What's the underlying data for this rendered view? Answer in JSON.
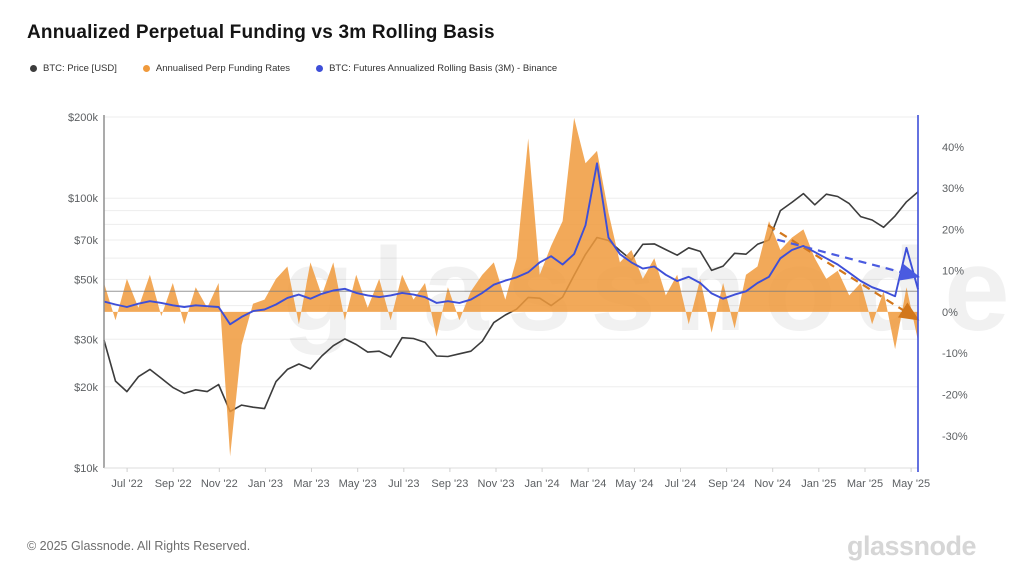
{
  "header": {
    "title": "Annualized Perpetual Funding vs 3m Rolling Basis"
  },
  "legend": {
    "items": [
      {
        "label": "BTC: Price [USD]",
        "color": "#3c3c3c"
      },
      {
        "label": "Annualised Perp Funding Rates",
        "color": "#f09a3c"
      },
      {
        "label": "BTC: Futures Annualized Rolling Basis (3M) - Binance",
        "color": "#3e4fd8"
      }
    ]
  },
  "watermark": {
    "text": "glassnode"
  },
  "footer": {
    "copyright": "© 2025 Glassnode. All Rights Reserved.",
    "brand": "glassnode"
  },
  "chart_data": {
    "type": "mixed",
    "title": "Annualized Perpetual Funding vs 3m Rolling Basis",
    "x_axis": {
      "description": "Time, late May 2022 to mid May 2025; series sampled uniformly (~half-month steps), month 0 = Jun 2022",
      "domain_months": 35.3,
      "tick_month_offsets": [
        1,
        3,
        5,
        7,
        9,
        11,
        13,
        15,
        17,
        19,
        21,
        23,
        25,
        27,
        29,
        31,
        33,
        35
      ],
      "tick_labels": [
        "Jul '22",
        "Sep '22",
        "Nov '22",
        "Jan '23",
        "Mar '23",
        "May '23",
        "Jul '23",
        "Sep '23",
        "Nov '23",
        "Jan '24",
        "Mar '24",
        "May '24",
        "Jul '24",
        "Sep '24",
        "Nov '24",
        "Jan '25",
        "Mar '25",
        "May '25"
      ]
    },
    "left_axis": {
      "label": "BTC price, USD (log scale)",
      "scale": "log",
      "range_k": [
        10,
        200
      ],
      "tick_values_k": [
        200,
        100,
        70,
        50,
        30,
        20,
        10
      ],
      "tick_labels": [
        "$200k",
        "$100k",
        "$70k",
        "$50k",
        "$30k",
        "$20k",
        "$10k"
      ],
      "gridline_values_k": [
        200,
        100,
        90,
        80,
        70,
        60,
        50,
        40,
        30,
        20
      ]
    },
    "right_axis": {
      "label": "Annualized rate, %",
      "scale": "linear",
      "range": [
        -37.8,
        47.7
      ],
      "tick_values": [
        40,
        30,
        20,
        10,
        0,
        -10,
        -20,
        -30
      ],
      "tick_labels": [
        "40%",
        "30%",
        "20%",
        "10%",
        "0%",
        "-10%",
        "-20%",
        "-30%"
      ],
      "axis_line_color": "#3e4fd8"
    },
    "series": [
      {
        "name": "BTC: Price [USD]",
        "type": "line",
        "axis": "left",
        "unit": "thousand USD",
        "color": "#3c3c3c",
        "values": [
          29.8,
          21.0,
          19.2,
          21.8,
          23.2,
          21.5,
          19.9,
          18.9,
          19.5,
          19.2,
          20.4,
          16.2,
          17.1,
          16.8,
          16.6,
          20.9,
          23.2,
          24.3,
          23.3,
          26.0,
          28.4,
          30.1,
          28.7,
          26.9,
          27.1,
          25.8,
          30.4,
          30.2,
          29.2,
          26.0,
          25.9,
          26.5,
          27.1,
          29.5,
          34.6,
          36.9,
          38.8,
          42.9,
          42.6,
          40.0,
          43.0,
          51.8,
          61.9,
          71.5,
          69.7,
          64.0,
          59.0,
          67.5,
          67.7,
          64.5,
          61.5,
          65.5,
          63.5,
          54.0,
          56.0,
          62.5,
          62.0,
          67.5,
          70.0,
          90.0,
          96.5,
          104.0,
          94.5,
          103.5,
          101.5,
          95.5,
          85.5,
          83.0,
          78.0,
          86.0,
          97.0,
          105.5
        ]
      },
      {
        "name": "Annualised Perp Funding Rates",
        "type": "area",
        "axis": "right",
        "unit": "%",
        "baseline": 0,
        "color": "#f09a3c",
        "opacity": 0.85,
        "values": [
          7,
          -2,
          8,
          1,
          9,
          -1,
          7,
          -3,
          6,
          1,
          7,
          -35,
          -8,
          2,
          3,
          8,
          11,
          -3,
          12,
          4,
          12,
          -2,
          9,
          1,
          8,
          -2,
          9,
          3,
          7,
          -6,
          6,
          -2,
          5,
          9,
          12,
          3,
          13,
          42,
          9,
          16,
          22,
          47,
          36,
          39,
          24,
          12,
          15,
          8,
          13,
          4,
          9,
          -3,
          8,
          -5,
          7,
          -4,
          9,
          11,
          22,
          15,
          18,
          20,
          13,
          8,
          10,
          4,
          7,
          -3,
          5,
          -9,
          6,
          -7
        ]
      },
      {
        "name": "BTC: Futures Annualized Rolling Basis (3M) - Binance",
        "type": "line",
        "axis": "right",
        "unit": "%",
        "color": "#3e4fd8",
        "values": [
          2.5,
          1.8,
          1.2,
          2.0,
          2.6,
          2.2,
          1.6,
          1.2,
          1.6,
          1.4,
          1.2,
          -3.0,
          -1.2,
          0.2,
          0.6,
          1.8,
          3.4,
          4.2,
          3.2,
          4.4,
          5.2,
          5.6,
          4.6,
          4.0,
          3.6,
          4.0,
          4.6,
          4.2,
          3.6,
          2.2,
          2.6,
          2.2,
          3.0,
          4.6,
          6.6,
          7.6,
          8.4,
          9.6,
          12.0,
          13.5,
          11.5,
          14.0,
          21.0,
          36.0,
          18.0,
          14.0,
          12.0,
          10.5,
          11.0,
          9.0,
          7.5,
          8.5,
          7.0,
          4.5,
          3.2,
          4.2,
          5.0,
          7.0,
          8.5,
          13.0,
          15.0,
          16.0,
          14.5,
          13.0,
          11.5,
          9.5,
          7.5,
          6.0,
          5.0,
          3.8,
          15.5,
          5.5
        ]
      }
    ],
    "annotations": {
      "hline": {
        "axis": "right",
        "value": 5,
        "color": "#7d7d7d"
      },
      "trendlines": [
        {
          "name": "funding-downtrend",
          "from_month": 28.8,
          "from_value": 21.0,
          "to_month": 35.2,
          "to_value": -1.5,
          "color": "#d2771c",
          "style": "dashed",
          "arrow": true
        },
        {
          "name": "basis-downtrend",
          "from_month": 29.2,
          "from_value": 17.5,
          "to_month": 35.2,
          "to_value": 8.7,
          "color": "#4a5be0",
          "style": "dashed",
          "arrow": true
        }
      ]
    },
    "grid": true,
    "legend_position": "top-left"
  }
}
